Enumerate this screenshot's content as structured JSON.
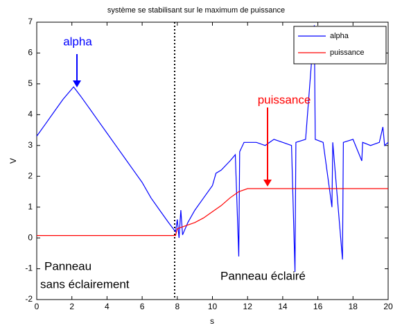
{
  "chart_data": {
    "type": "line",
    "title": "système se stabilisant sur le maximum de puissance",
    "x_label": "s",
    "y_label": "V",
    "xlim": [
      0,
      20
    ],
    "xticks": [
      0,
      2,
      4,
      6,
      8,
      10,
      12,
      14,
      16,
      18,
      20
    ],
    "ylim": [
      -2,
      7
    ],
    "yticks": [
      -2,
      -1,
      0,
      1,
      2,
      3,
      4,
      5,
      6,
      7
    ],
    "legend": "upper right",
    "vline": 7.85,
    "series": [
      {
        "name": "alpha",
        "color": "#0000ff",
        "x": [
          0,
          0.5,
          1,
          1.5,
          2.1,
          2.5,
          3,
          3.5,
          4,
          4.5,
          5,
          5.5,
          6,
          6.5,
          7,
          7.5,
          7.9,
          8.0,
          8.1,
          8.2,
          8.3,
          8.6,
          9,
          9.5,
          10,
          10.2,
          10.5,
          11,
          11.3,
          11.5,
          11.55,
          11.8,
          12.5,
          13,
          13.5,
          14,
          14.5,
          14.7,
          14.75,
          15.3,
          15.8,
          15.85,
          16.3,
          16.8,
          16.85,
          17.4,
          17.45,
          18,
          18.5,
          18.55,
          19,
          19.5,
          19.7,
          19.8,
          20
        ],
        "values": [
          3.3,
          3.7,
          4.1,
          4.5,
          4.9,
          4.6,
          4.2,
          3.8,
          3.4,
          3.0,
          2.6,
          2.2,
          1.8,
          1.3,
          0.9,
          0.5,
          0.2,
          0.6,
          0.0,
          0.9,
          0.1,
          0.5,
          0.9,
          1.3,
          1.7,
          2.1,
          2.2,
          2.5,
          2.7,
          -0.6,
          2.8,
          3.1,
          3.1,
          3.0,
          3.2,
          3.1,
          3.0,
          -1.1,
          3.1,
          3.2,
          6.9,
          3.2,
          3.1,
          1.0,
          3.1,
          -0.7,
          3.1,
          3.2,
          2.5,
          3.1,
          3.0,
          3.1,
          3.6,
          3.0,
          3.1
        ]
      },
      {
        "name": "puissance",
        "color": "#ff0000",
        "x": [
          0,
          2,
          4,
          6,
          7.9,
          8,
          8.5,
          9,
          9.5,
          10,
          10.5,
          11,
          11.5,
          12,
          13,
          14,
          15,
          16,
          17,
          18,
          19,
          20
        ],
        "values": [
          0.08,
          0.08,
          0.08,
          0.08,
          0.08,
          0.3,
          0.4,
          0.5,
          0.65,
          0.85,
          1.05,
          1.3,
          1.5,
          1.6,
          1.6,
          1.6,
          1.6,
          1.6,
          1.6,
          1.6,
          1.6,
          1.6
        ]
      }
    ],
    "annotations": [
      {
        "text": "alpha"
      },
      {
        "text": "puissance"
      },
      {
        "text": "Panneau"
      },
      {
        "text": "sans éclairement"
      },
      {
        "text": "Panneau éclairé"
      }
    ]
  }
}
